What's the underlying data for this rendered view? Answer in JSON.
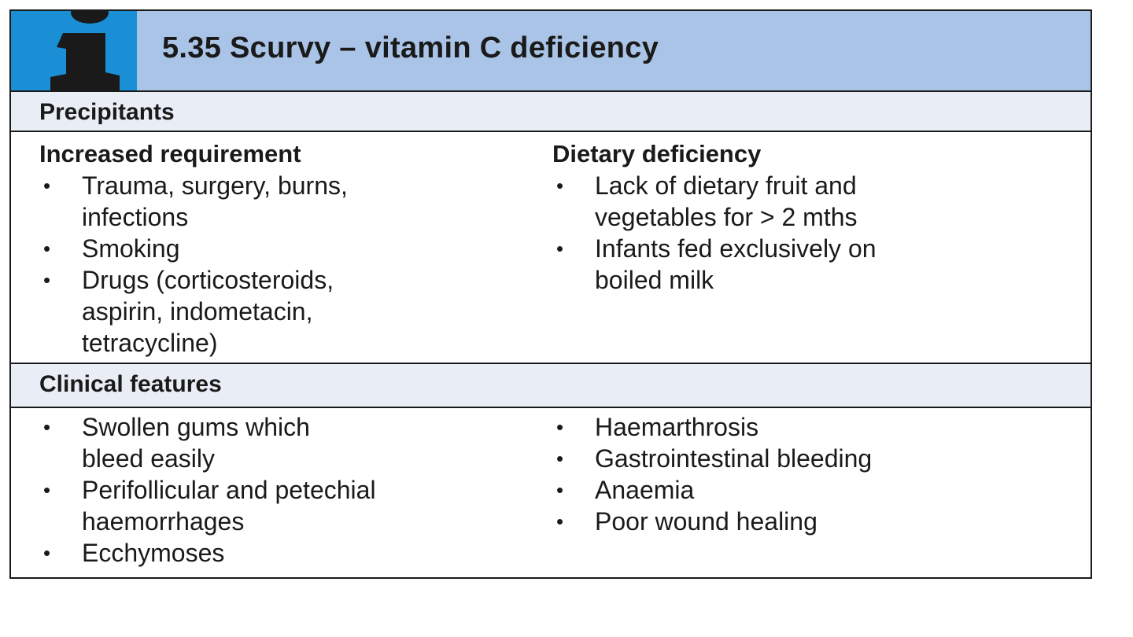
{
  "box": {
    "title": "5.35  Scurvy – vitamin C deficiency",
    "icon": "info-icon"
  },
  "precipitants": {
    "label": "Precipitants",
    "left": {
      "heading": "Increased requirement",
      "items": [
        [
          "Trauma, surgery, burns,",
          "infections"
        ],
        [
          "Smoking"
        ],
        [
          "Drugs (corticosteroids,",
          "aspirin, indometacin,",
          "tetracycline)"
        ]
      ]
    },
    "right": {
      "heading": "Dietary deficiency",
      "items": [
        [
          "Lack of dietary fruit and",
          "vegetables for > 2 mths"
        ],
        [
          "Infants fed exclusively on",
          "boiled milk"
        ]
      ]
    }
  },
  "clinical": {
    "label": "Clinical features",
    "left": {
      "items": [
        [
          "Swollen gums which",
          "bleed easily"
        ],
        [
          "Perifollicular and petechial",
          "haemorrhages"
        ],
        [
          "Ecchymoses"
        ]
      ]
    },
    "right": {
      "items": [
        [
          "Haemarthrosis"
        ],
        [
          "Gastrointestinal bleeding"
        ],
        [
          "Anaemia"
        ],
        [
          "Poor wound healing"
        ]
      ]
    }
  },
  "colors": {
    "header_bg": "#a9c4e6",
    "icon_tile": "#1a8fd6",
    "section_bg": "#e9eef6",
    "border": "#1a1a1a"
  }
}
